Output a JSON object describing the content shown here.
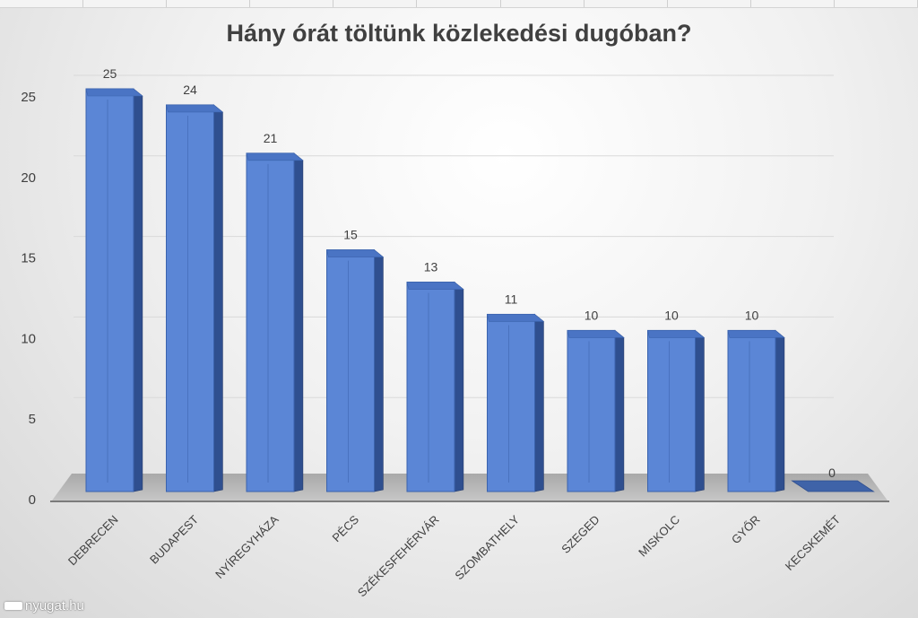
{
  "chart_data": {
    "type": "bar",
    "title": "Hány órát töltünk közlekedési dugóban?",
    "categories": [
      "DEBRECEN",
      "BUDAPEST",
      "NYÍREGYHÁZA",
      "PÉCS",
      "SZÉKESFEHÉRVÁR",
      "SZOMBATHELY",
      "SZEGED",
      "MISKOLC",
      "GYŐR",
      "KECSKEMÉT"
    ],
    "values": [
      25,
      24,
      21,
      15,
      13,
      11,
      10,
      10,
      10,
      0
    ],
    "data_labels": [
      "25",
      "24",
      "21",
      "15",
      "13",
      "11",
      "10",
      "10",
      "10",
      "0"
    ],
    "yticks": [
      "0",
      "5",
      "10",
      "15",
      "20",
      "25"
    ],
    "ylim": [
      0,
      25
    ],
    "xlabel": "",
    "ylabel": "",
    "style": "3d-column",
    "bar_color": "#5b86d6",
    "grid": true,
    "legend": "none"
  },
  "watermark": {
    "text": "nyugat.hu"
  }
}
